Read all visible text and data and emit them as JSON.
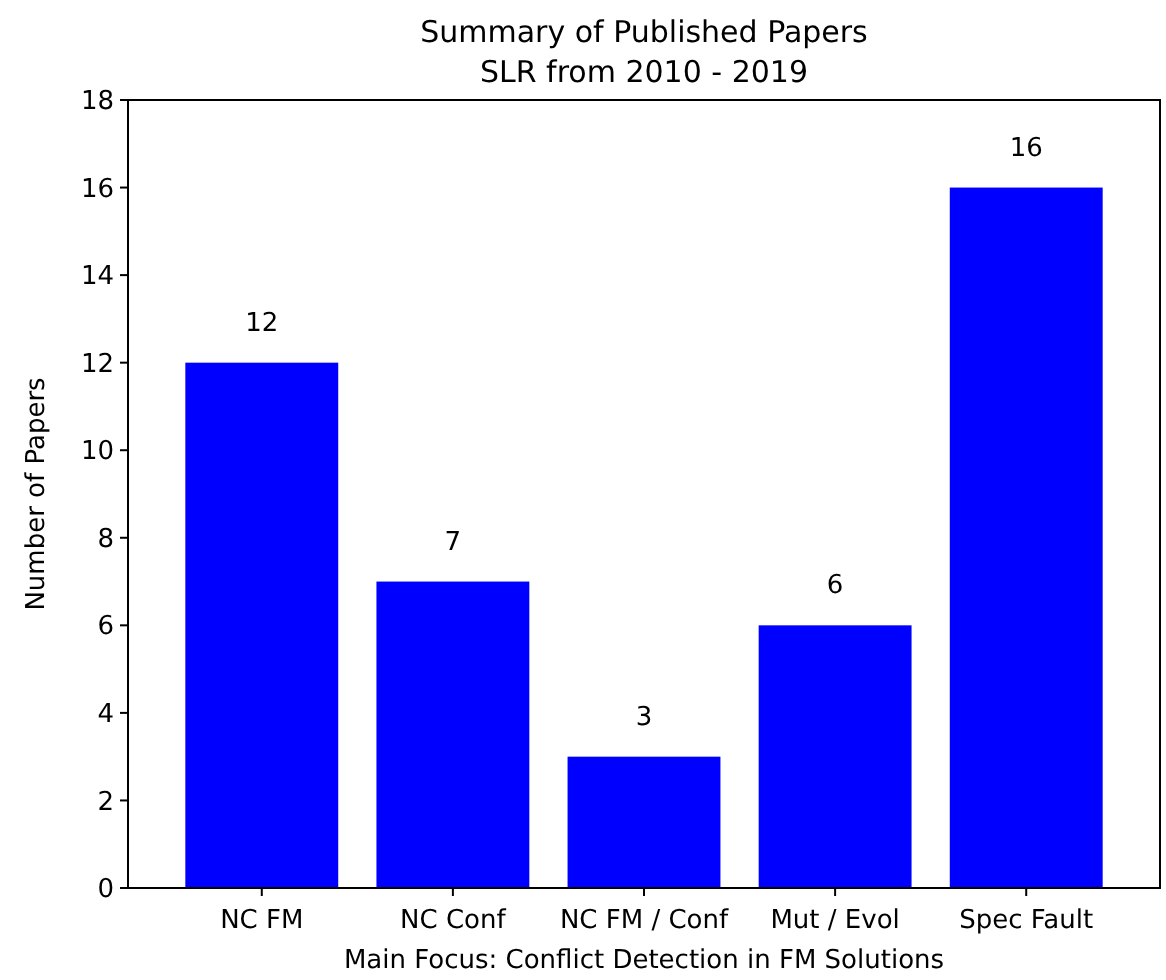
{
  "chart_data": {
    "type": "bar",
    "title": "Summary of Published Papers",
    "subtitle": "SLR from 2010 - 2019",
    "xlabel": "Main Focus: Conflict Detection in FM Solutions",
    "ylabel": "Number of Papers",
    "categories": [
      "NC FM",
      "NC Conf",
      "NC FM / Conf",
      "Mut / Evol",
      "Spec Fault"
    ],
    "values": [
      12,
      7,
      3,
      6,
      16
    ],
    "color": "#0000ff",
    "ylim": [
      0,
      18
    ],
    "yticks": [
      0,
      2,
      4,
      6,
      8,
      10,
      12,
      14,
      16,
      18
    ],
    "data_labels": true
  }
}
